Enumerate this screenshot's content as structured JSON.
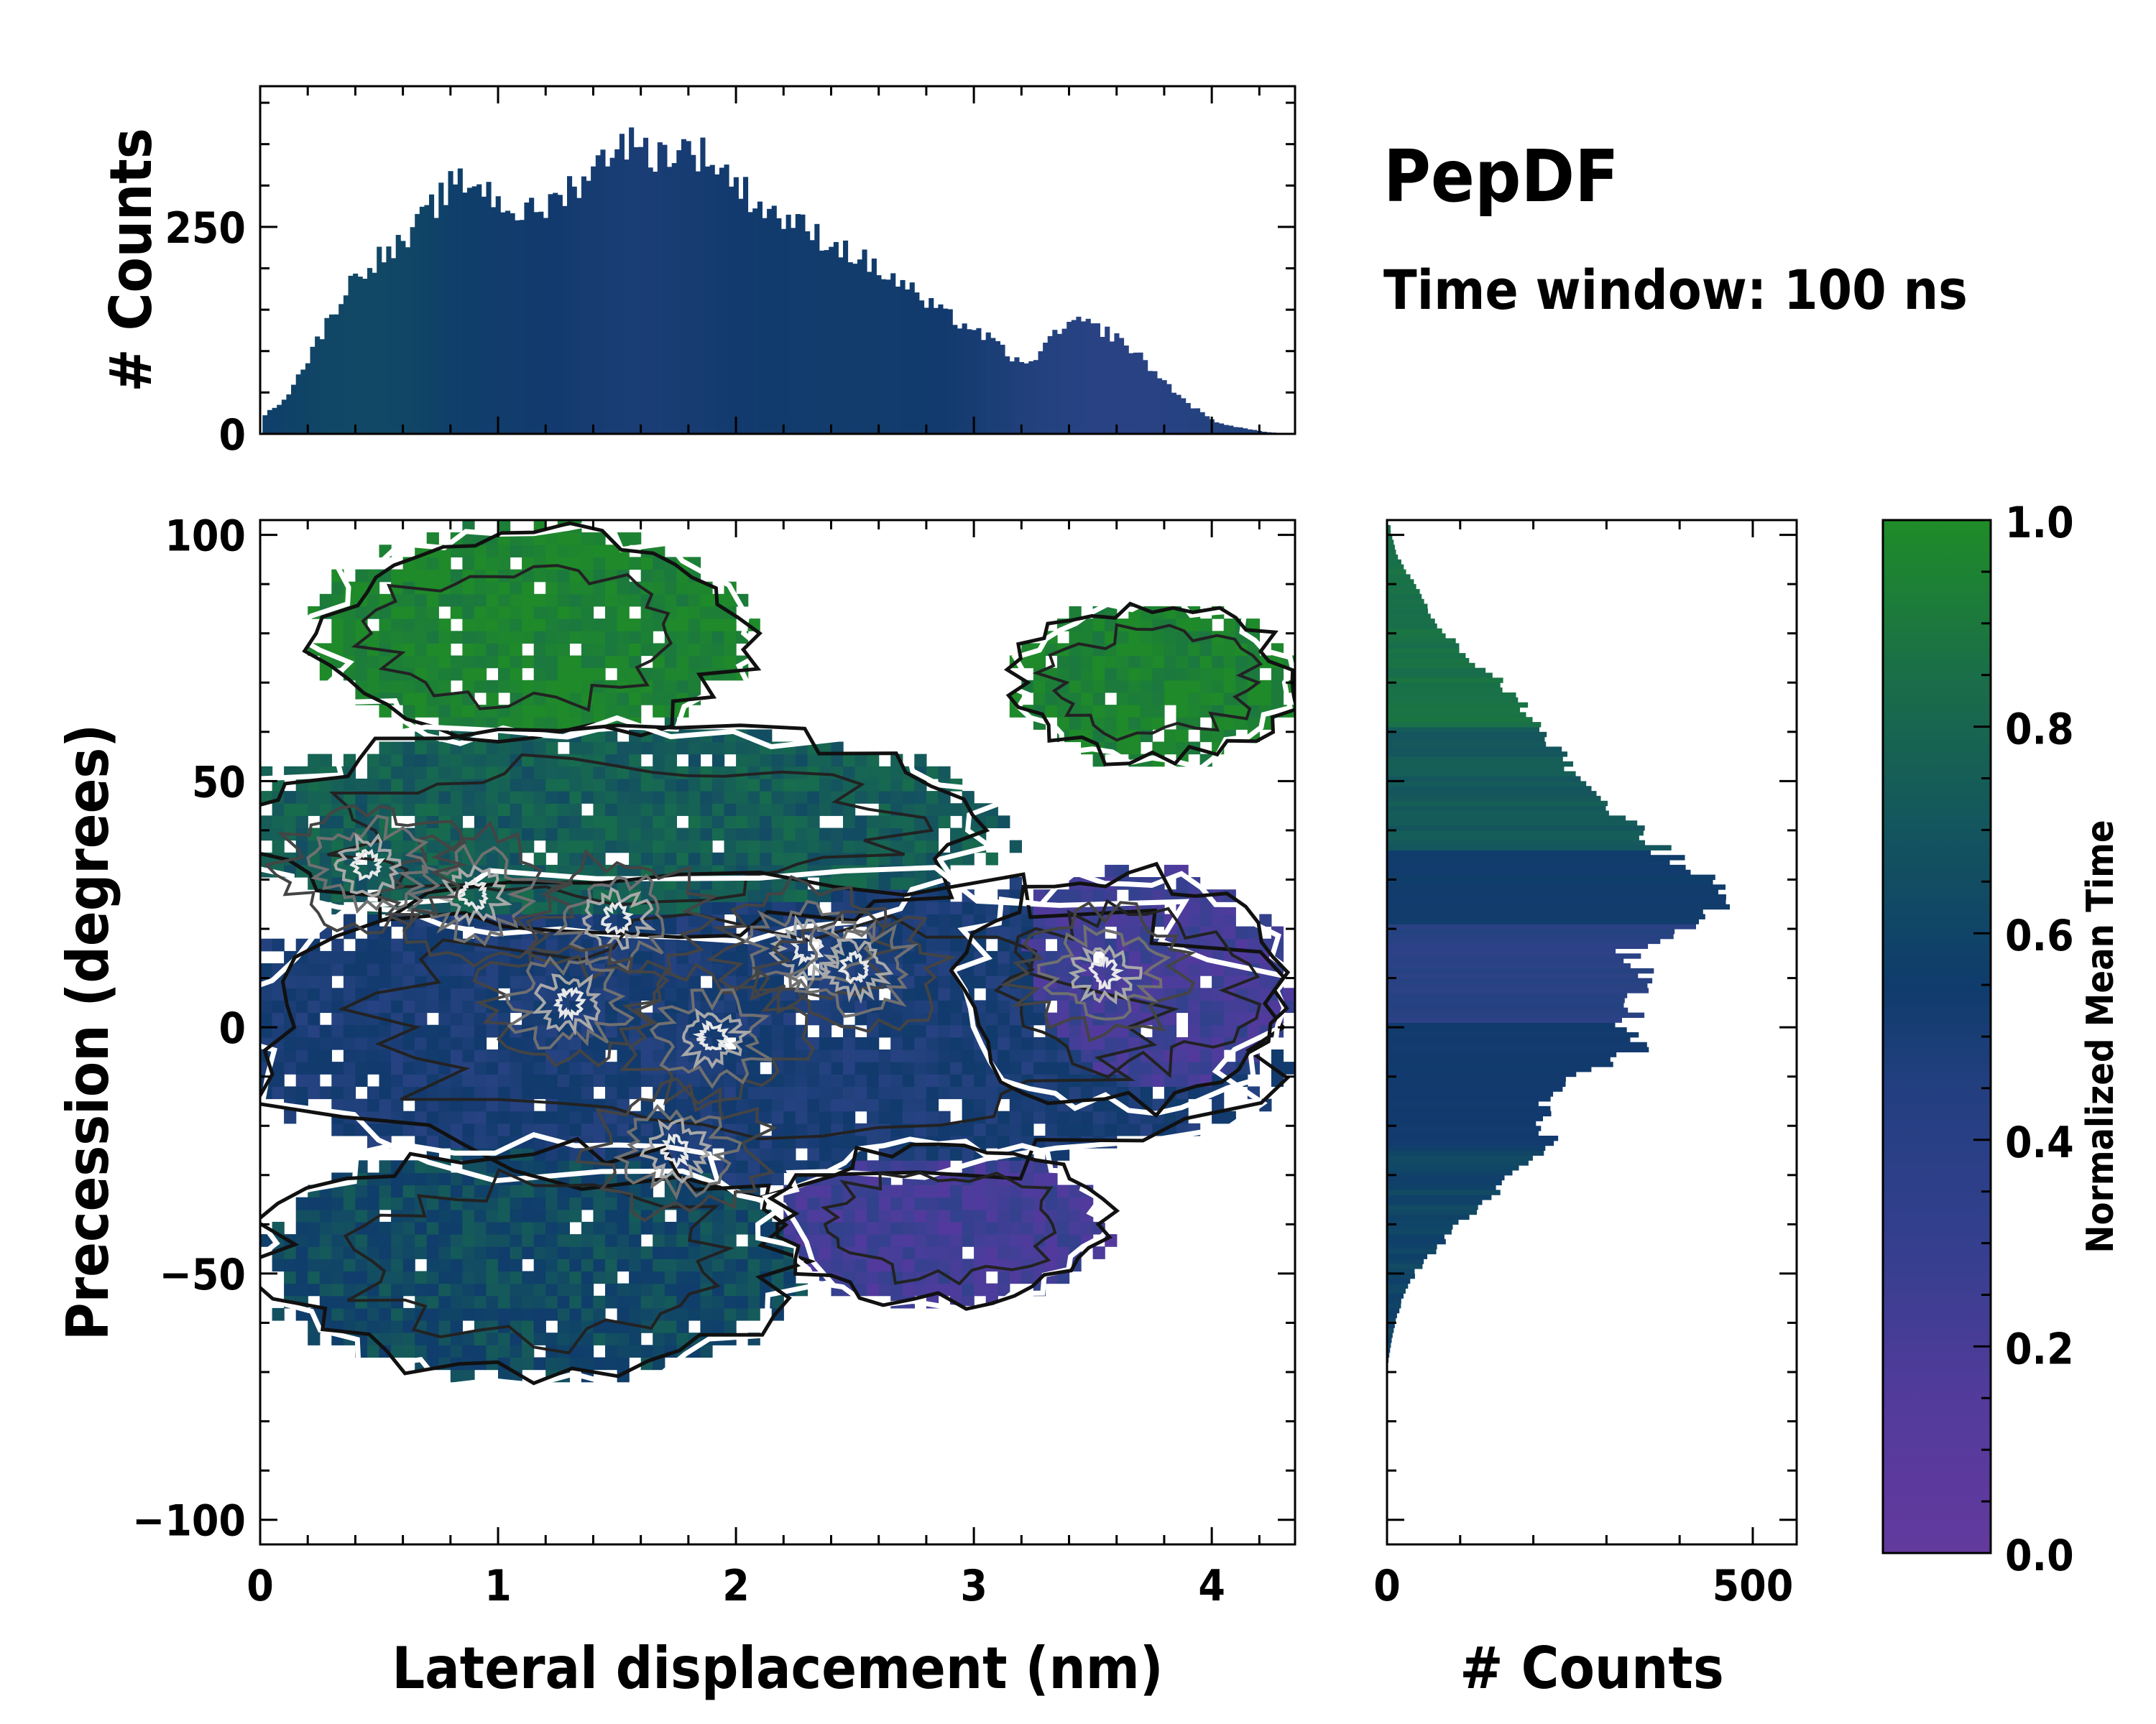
{
  "chart_data": {
    "type": "heatmap",
    "title": "PepDF",
    "subtitle": "Time window: 100 ns",
    "main": {
      "xlabel": "Lateral displacement (nm)",
      "ylabel": "Precession (degrees)",
      "xlim": [
        0,
        4.35
      ],
      "ylim": [
        -105,
        103
      ],
      "xticks": [
        0,
        1,
        2,
        3,
        4
      ],
      "xtick_labels": [
        "0",
        "1",
        "2",
        "3",
        "4"
      ],
      "yticks": [
        100,
        50,
        0,
        -50,
        -100
      ],
      "ytick_labels": [
        "100",
        "50",
        "0",
        "−50",
        "−100"
      ],
      "regions": [
        {
          "name": "upper-left lobe",
          "x": [
            0.3,
            2.0
          ],
          "y": [
            60,
            100
          ],
          "mean_time": 0.95
        },
        {
          "name": "upper-right lobe",
          "x": [
            3.2,
            4.3
          ],
          "y": [
            55,
            85
          ],
          "mean_time": 0.95
        },
        {
          "name": "mid band",
          "x": [
            0.0,
            3.0
          ],
          "y": [
            20,
            60
          ],
          "mean_time": 0.7
        },
        {
          "name": "center band",
          "x": [
            0.0,
            4.2
          ],
          "y": [
            -30,
            30
          ],
          "mean_time": 0.4
        },
        {
          "name": "right band",
          "x": [
            3.0,
            4.3
          ],
          "y": [
            -15,
            30
          ],
          "mean_time": 0.15
        },
        {
          "name": "lower-left lobe",
          "x": [
            0.1,
            2.2
          ],
          "y": [
            -70,
            -25
          ],
          "mean_time": 0.6
        },
        {
          "name": "lower-right lobe",
          "x": [
            2.2,
            3.5
          ],
          "y": [
            -55,
            -25
          ],
          "mean_time": 0.15
        }
      ],
      "density_peaks": [
        {
          "x": 0.9,
          "y": 27
        },
        {
          "x": 0.45,
          "y": 33
        },
        {
          "x": 1.5,
          "y": 22
        },
        {
          "x": 2.3,
          "y": 16
        },
        {
          "x": 2.5,
          "y": 12
        },
        {
          "x": 1.3,
          "y": 5
        },
        {
          "x": 1.9,
          "y": -2
        },
        {
          "x": 1.75,
          "y": -25
        },
        {
          "x": 3.55,
          "y": 11
        }
      ]
    },
    "top_histogram": {
      "ylabel": "# Counts",
      "yticks": [
        0,
        250
      ],
      "ytick_labels": [
        "0",
        "250"
      ],
      "ylim": [
        0,
        420
      ],
      "x_points": [
        0.0,
        0.1,
        0.2,
        0.3,
        0.4,
        0.5,
        0.6,
        0.7,
        0.8,
        0.9,
        1.0,
        1.1,
        1.2,
        1.3,
        1.4,
        1.5,
        1.6,
        1.7,
        1.8,
        1.9,
        2.0,
        2.1,
        2.2,
        2.3,
        2.4,
        2.5,
        2.6,
        2.7,
        2.8,
        2.9,
        3.0,
        3.1,
        3.2,
        3.3,
        3.4,
        3.5,
        3.6,
        3.7,
        3.8,
        3.9,
        4.0,
        4.1,
        4.2,
        4.3
      ],
      "counts": [
        20,
        45,
        95,
        150,
        195,
        215,
        230,
        270,
        300,
        305,
        280,
        265,
        275,
        300,
        320,
        360,
        340,
        340,
        345,
        330,
        300,
        275,
        260,
        245,
        230,
        215,
        195,
        180,
        155,
        140,
        125,
        105,
        80,
        110,
        135,
        130,
        115,
        90,
        60,
        35,
        15,
        8,
        3,
        0
      ]
    },
    "right_histogram": {
      "xlabel": "# Counts",
      "xticks": [
        0,
        500
      ],
      "xtick_labels": [
        "0",
        "500"
      ],
      "xlim": [
        0,
        560
      ],
      "y_points": [
        100,
        95,
        90,
        85,
        80,
        75,
        70,
        65,
        60,
        55,
        50,
        45,
        40,
        35,
        30,
        25,
        20,
        15,
        10,
        5,
        0,
        -5,
        -10,
        -15,
        -20,
        -25,
        -30,
        -35,
        -40,
        -45,
        -50,
        -55,
        -60,
        -65,
        -70
      ],
      "counts": [
        5,
        15,
        35,
        55,
        75,
        110,
        150,
        185,
        210,
        240,
        260,
        290,
        340,
        380,
        430,
        470,
        400,
        330,
        350,
        345,
        330,
        340,
        260,
        220,
        210,
        230,
        175,
        145,
        100,
        70,
        40,
        22,
        12,
        5,
        0
      ]
    },
    "colorbar": {
      "label": "Normalized Mean Time",
      "range": [
        0.0,
        1.0
      ],
      "ticks": [
        0.0,
        0.2,
        0.4,
        0.6,
        0.8,
        1.0
      ],
      "tick_labels": [
        "0.0",
        "0.2",
        "0.4",
        "0.6",
        "0.8",
        "1.0"
      ],
      "colormap": [
        "#5c35a0",
        "#4b3d9b",
        "#34418e",
        "#24427f",
        "#123a6e",
        "#0f3f6a",
        "#15585c",
        "#176b4f",
        "#1c7b3b",
        "#1f8a2a"
      ]
    }
  }
}
